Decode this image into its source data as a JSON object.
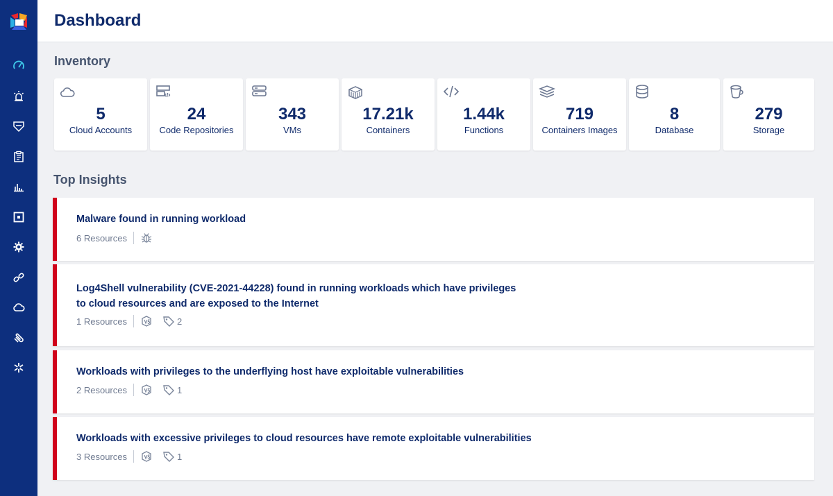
{
  "header": {
    "title": "Dashboard"
  },
  "sidebar": {
    "items": [
      {
        "name": "dashboard",
        "icon": "gauge-icon"
      },
      {
        "name": "alerts",
        "icon": "alarm-icon"
      },
      {
        "name": "security",
        "icon": "shield-icon"
      },
      {
        "name": "reports",
        "icon": "clipboard-icon"
      },
      {
        "name": "analytics",
        "icon": "bar-chart-icon"
      },
      {
        "name": "compliance",
        "icon": "square-target-icon"
      },
      {
        "name": "settings",
        "icon": "gear-icon"
      },
      {
        "name": "integrations",
        "icon": "link-icon"
      },
      {
        "name": "cloud",
        "icon": "cloud-icon"
      },
      {
        "name": "attachments",
        "icon": "paperclip-icon"
      },
      {
        "name": "tools",
        "icon": "asterisk-icon"
      }
    ]
  },
  "inventory": {
    "title": "Inventory",
    "cards": [
      {
        "value": "5",
        "label": "Cloud Accounts",
        "icon": "cloud-icon"
      },
      {
        "value": "24",
        "label": "Code Repositories",
        "icon": "code-repo-icon"
      },
      {
        "value": "343",
        "label": "VMs",
        "icon": "server-icon"
      },
      {
        "value": "17.21k",
        "label": "Containers",
        "icon": "container-icon"
      },
      {
        "value": "1.44k",
        "label": "Functions",
        "icon": "code-icon"
      },
      {
        "value": "719",
        "label": "Containers Images",
        "icon": "layers-icon"
      },
      {
        "value": "8",
        "label": "Database",
        "icon": "database-icon"
      },
      {
        "value": "279",
        "label": "Storage",
        "icon": "storage-bucket-icon"
      }
    ]
  },
  "insights": {
    "title": "Top Insights",
    "items": [
      {
        "title": "Malware found in running workload",
        "resources": "6 Resources",
        "badge": "bug-icon",
        "tag_count": ""
      },
      {
        "title": "Log4Shell vulnerability (CVE-2021-44228) found in running workloads which have privileges to cloud resources and are exposed to the Internet",
        "resources": "1 Resources",
        "badge": "vulnerability-icon",
        "tag_count": "2"
      },
      {
        "title": "Workloads with privileges to the underflying host have exploitable vulnerabilities",
        "resources": "2 Resources",
        "badge": "vulnerability-icon",
        "tag_count": "1"
      },
      {
        "title": "Workloads with excessive privileges to cloud resources have remote exploitable vulnerabilities",
        "resources": "3 Resources",
        "badge": "vulnerability-icon",
        "tag_count": "1"
      }
    ]
  },
  "colors": {
    "sidebar": "#0d2f7e",
    "accent": "#d0021b",
    "title": "#0f2a6b"
  }
}
